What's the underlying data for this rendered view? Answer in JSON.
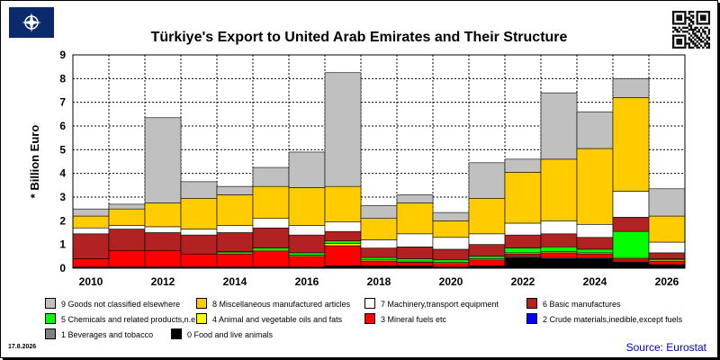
{
  "header": {
    "logo_icon": "turkish-flag-emblem-icon",
    "qr_icon": "qr-code-icon"
  },
  "chart_data": {
    "type": "bar",
    "stacked": true,
    "title": "Türkiye's Export to United Arab Emirates and Their Structure",
    "ylabel": "* Billion Euro",
    "xlabel": "",
    "ylim": [
      0,
      9
    ],
    "yticks": [
      "0",
      "1",
      "2",
      "3",
      "4",
      "5",
      "6",
      "7",
      "8",
      "9"
    ],
    "grid": true,
    "legend_position": "bottom",
    "categories": [
      "2010",
      "2011",
      "2012",
      "2013",
      "2014",
      "2015",
      "2016",
      "2017",
      "2018",
      "2019",
      "2020",
      "2021",
      "2022",
      "2023",
      "2024",
      "2025",
      "2026"
    ],
    "xtick_labels": [
      "2010",
      "2012",
      "2014",
      "2016",
      "2018",
      "2020",
      "2022",
      "2024",
      "2026"
    ],
    "series": [
      {
        "name": "0 Food and live animals",
        "color": "#000000",
        "values": [
          0.05,
          0.05,
          0.05,
          0.05,
          0.05,
          0.05,
          0.05,
          0.1,
          0.1,
          0.1,
          0.05,
          0.1,
          0.45,
          0.4,
          0.4,
          0.25,
          0.15
        ]
      },
      {
        "name": "1 Beverages and tobacco",
        "color": "#808080",
        "values": [
          0.0,
          0.0,
          0.0,
          0.0,
          0.0,
          0.0,
          0.0,
          0.0,
          0.0,
          0.0,
          0.0,
          0.0,
          0.05,
          0.05,
          0.05,
          0.05,
          0.0
        ]
      },
      {
        "name": "2 Crude materials,inedible,except fuels",
        "color": "#0000ff",
        "values": [
          0.0,
          0.0,
          0.0,
          0.0,
          0.0,
          0.0,
          0.0,
          0.0,
          0.0,
          0.0,
          0.0,
          0.0,
          0.0,
          0.0,
          0.0,
          0.0,
          0.0
        ]
      },
      {
        "name": "3 Mineral fuels etc",
        "color": "#ff0000",
        "values": [
          0.35,
          0.7,
          0.7,
          0.55,
          0.55,
          0.65,
          0.45,
          0.85,
          0.2,
          0.15,
          0.15,
          0.25,
          0.1,
          0.2,
          0.15,
          0.1,
          0.15
        ]
      },
      {
        "name": "4 Animal and vegetable oils and fats",
        "color": "#ffff00",
        "values": [
          0.0,
          0.0,
          0.0,
          0.0,
          0.05,
          0.05,
          0.05,
          0.1,
          0.05,
          0.05,
          0.05,
          0.05,
          0.05,
          0.05,
          0.05,
          0.05,
          0.05
        ]
      },
      {
        "name": "5 Chemicals and related products,n.e.s.",
        "color": "#00ff00",
        "values": [
          0.0,
          0.0,
          0.0,
          0.0,
          0.05,
          0.1,
          0.1,
          0.1,
          0.1,
          0.1,
          0.1,
          0.1,
          0.2,
          0.2,
          0.15,
          1.1,
          0.05
        ]
      },
      {
        "name": "6 Basic manufactures",
        "color": "#b22222",
        "values": [
          1.05,
          0.9,
          0.75,
          0.8,
          0.8,
          0.85,
          0.75,
          0.4,
          0.4,
          0.5,
          0.45,
          0.5,
          0.55,
          0.55,
          0.5,
          0.6,
          0.25
        ]
      },
      {
        "name": "7 Machinery,transport equipment",
        "color": "#ffffff",
        "values": [
          0.25,
          0.15,
          0.25,
          0.25,
          0.3,
          0.4,
          0.4,
          0.4,
          0.35,
          0.55,
          0.5,
          0.45,
          0.5,
          0.55,
          0.55,
          1.1,
          0.45
        ]
      },
      {
        "name": "8 Miscellaneous manufactured articles",
        "color": "#ffcc00",
        "values": [
          0.5,
          0.7,
          1.0,
          1.3,
          1.3,
          1.35,
          1.6,
          1.5,
          0.9,
          1.3,
          0.7,
          1.5,
          2.15,
          2.6,
          3.2,
          3.95,
          1.1
        ]
      },
      {
        "name": "9 Goods not classified elsewhere",
        "color": "#c0c0c0",
        "values": [
          0.3,
          0.2,
          3.6,
          0.7,
          0.35,
          0.8,
          1.5,
          4.8,
          0.55,
          0.35,
          0.35,
          1.5,
          0.55,
          2.8,
          1.55,
          0.8,
          1.15
        ]
      }
    ],
    "legend": [
      {
        "label": "9 Goods not classified elsewhere",
        "color": "#c0c0c0"
      },
      {
        "label": "8 Miscellaneous manufactured articles",
        "color": "#ffcc00"
      },
      {
        "label": "7 Machinery,transport equipment",
        "color": "#ffffff"
      },
      {
        "label": "6 Basic manufactures",
        "color": "#b22222"
      },
      {
        "label": "5 Chemicals and related products,n.e.s.",
        "color": "#00ff00"
      },
      {
        "label": "4 Animal and vegetable oils and fats",
        "color": "#ffff00"
      },
      {
        "label": "3 Mineral fuels etc",
        "color": "#ff0000"
      },
      {
        "label": "2 Crude materials,inedible,except fuels",
        "color": "#0000ff"
      },
      {
        "label": "1 Beverages and tobacco",
        "color": "#808080"
      },
      {
        "label": "0 Food and live animals",
        "color": "#000000"
      }
    ]
  },
  "footer": {
    "date": "17.8.2026",
    "source": "Source: Eurostat"
  }
}
